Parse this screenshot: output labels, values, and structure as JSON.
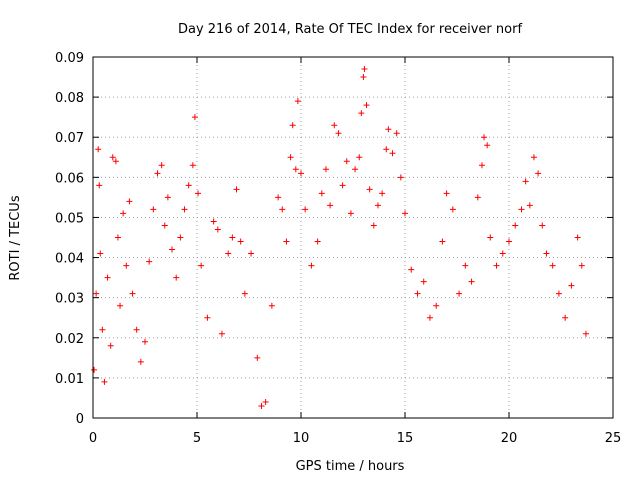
{
  "chart_data": {
    "type": "scatter",
    "title": "Day 216 of 2014, Rate Of TEC Index for receiver norf",
    "xlabel": "GPS time / hours",
    "ylabel": "ROTI / TECUs",
    "xlim": [
      0,
      25
    ],
    "ylim": [
      0,
      0.09
    ],
    "x_ticks": [
      0,
      5,
      10,
      15,
      20,
      25
    ],
    "y_ticks": [
      0,
      0.01,
      0.02,
      0.03,
      0.04,
      0.05,
      0.06,
      0.07,
      0.08,
      0.09
    ],
    "x_tick_labels": [
      "0",
      "5",
      "10",
      "15",
      "20",
      "25"
    ],
    "y_tick_labels": [
      "0",
      "0.01",
      "0.02",
      "0.03",
      "0.04",
      "0.05",
      "0.06",
      "0.07",
      "0.08",
      "0.09"
    ],
    "grid": true,
    "marker": "plus",
    "color": "#ff0000",
    "series": [
      {
        "points": [
          [
            0.05,
            0.012
          ],
          [
            0.15,
            0.031
          ],
          [
            0.25,
            0.067
          ],
          [
            0.3,
            0.058
          ],
          [
            0.35,
            0.041
          ],
          [
            0.45,
            0.022
          ],
          [
            0.55,
            0.009
          ],
          [
            0.7,
            0.035
          ],
          [
            0.85,
            0.018
          ],
          [
            0.95,
            0.065
          ],
          [
            1.1,
            0.064
          ],
          [
            1.2,
            0.045
          ],
          [
            1.3,
            0.028
          ],
          [
            1.45,
            0.051
          ],
          [
            1.6,
            0.038
          ],
          [
            1.75,
            0.054
          ],
          [
            1.9,
            0.031
          ],
          [
            2.1,
            0.022
          ],
          [
            2.3,
            0.014
          ],
          [
            2.5,
            0.019
          ],
          [
            2.7,
            0.039
          ],
          [
            2.9,
            0.052
          ],
          [
            3.1,
            0.061
          ],
          [
            3.3,
            0.063
          ],
          [
            3.45,
            0.048
          ],
          [
            3.6,
            0.055
          ],
          [
            3.8,
            0.042
          ],
          [
            4.0,
            0.035
          ],
          [
            4.2,
            0.045
          ],
          [
            4.4,
            0.052
          ],
          [
            4.6,
            0.058
          ],
          [
            4.8,
            0.063
          ],
          [
            4.9,
            0.075
          ],
          [
            5.05,
            0.056
          ],
          [
            5.2,
            0.038
          ],
          [
            5.5,
            0.025
          ],
          [
            5.8,
            0.049
          ],
          [
            6.0,
            0.047
          ],
          [
            6.2,
            0.021
          ],
          [
            6.5,
            0.041
          ],
          [
            6.7,
            0.045
          ],
          [
            6.9,
            0.057
          ],
          [
            7.1,
            0.044
          ],
          [
            7.3,
            0.031
          ],
          [
            7.6,
            0.041
          ],
          [
            7.9,
            0.015
          ],
          [
            8.1,
            0.003
          ],
          [
            8.3,
            0.004
          ],
          [
            8.6,
            0.028
          ],
          [
            8.9,
            0.055
          ],
          [
            9.1,
            0.052
          ],
          [
            9.3,
            0.044
          ],
          [
            9.5,
            0.065
          ],
          [
            9.6,
            0.073
          ],
          [
            9.75,
            0.062
          ],
          [
            9.85,
            0.079
          ],
          [
            10.0,
            0.061
          ],
          [
            10.2,
            0.052
          ],
          [
            10.5,
            0.038
          ],
          [
            10.8,
            0.044
          ],
          [
            11.0,
            0.056
          ],
          [
            11.2,
            0.062
          ],
          [
            11.4,
            0.053
          ],
          [
            11.6,
            0.073
          ],
          [
            11.8,
            0.071
          ],
          [
            12.0,
            0.058
          ],
          [
            12.2,
            0.064
          ],
          [
            12.4,
            0.051
          ],
          [
            12.6,
            0.062
          ],
          [
            12.8,
            0.065
          ],
          [
            12.9,
            0.076
          ],
          [
            13.0,
            0.085
          ],
          [
            13.05,
            0.087
          ],
          [
            13.15,
            0.078
          ],
          [
            13.3,
            0.057
          ],
          [
            13.5,
            0.048
          ],
          [
            13.7,
            0.053
          ],
          [
            13.9,
            0.056
          ],
          [
            14.1,
            0.067
          ],
          [
            14.2,
            0.072
          ],
          [
            14.4,
            0.066
          ],
          [
            14.6,
            0.071
          ],
          [
            14.8,
            0.06
          ],
          [
            15.0,
            0.051
          ],
          [
            15.3,
            0.037
          ],
          [
            15.6,
            0.031
          ],
          [
            15.9,
            0.034
          ],
          [
            16.2,
            0.025
          ],
          [
            16.5,
            0.028
          ],
          [
            16.8,
            0.044
          ],
          [
            17.0,
            0.056
          ],
          [
            17.3,
            0.052
          ],
          [
            17.6,
            0.031
          ],
          [
            17.9,
            0.038
          ],
          [
            18.2,
            0.034
          ],
          [
            18.5,
            0.055
          ],
          [
            18.7,
            0.063
          ],
          [
            18.8,
            0.07
          ],
          [
            18.95,
            0.068
          ],
          [
            19.1,
            0.045
          ],
          [
            19.4,
            0.038
          ],
          [
            19.7,
            0.041
          ],
          [
            20.0,
            0.044
          ],
          [
            20.3,
            0.048
          ],
          [
            20.6,
            0.052
          ],
          [
            20.8,
            0.059
          ],
          [
            21.0,
            0.053
          ],
          [
            21.2,
            0.065
          ],
          [
            21.4,
            0.061
          ],
          [
            21.6,
            0.048
          ],
          [
            21.8,
            0.041
          ],
          [
            22.1,
            0.038
          ],
          [
            22.4,
            0.031
          ],
          [
            22.7,
            0.025
          ],
          [
            23.0,
            0.033
          ],
          [
            23.3,
            0.045
          ],
          [
            23.5,
            0.038
          ],
          [
            23.7,
            0.021
          ]
        ]
      }
    ]
  }
}
